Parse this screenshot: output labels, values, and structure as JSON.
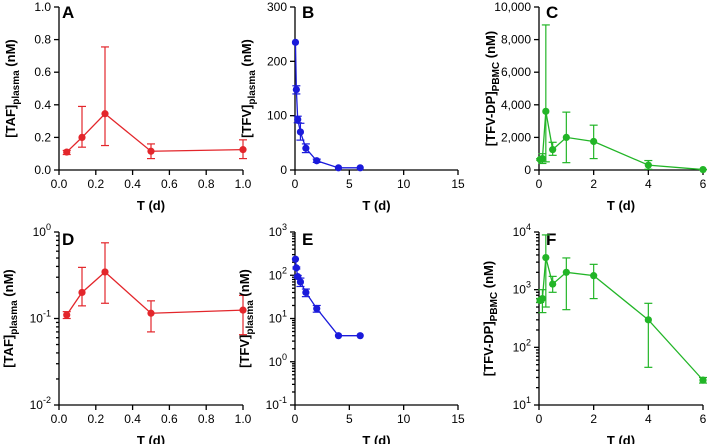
{
  "chart_data": [
    {
      "panel": "A",
      "type": "line",
      "color": "#e3262b",
      "scale": "linear",
      "xlabel": "T (d)",
      "ylabel_main": "[TAF]",
      "ylabel_sub": "plasma",
      "ylabel_tail": " (nM)",
      "xlim": [
        0,
        1
      ],
      "ylim": [
        0,
        1
      ],
      "xticks": [
        0,
        0.2,
        0.4,
        0.6,
        0.8,
        1
      ],
      "xtick_labels": [
        "0.0",
        "0.2",
        "0.4",
        "0.6",
        "0.8",
        "1.0"
      ],
      "yticks": [
        0,
        0.2,
        0.4,
        0.6,
        0.8,
        1
      ],
      "ytick_labels": [
        "0.0",
        "0.2",
        "0.4",
        "0.6",
        "0.8",
        "1.0"
      ],
      "x": [
        0.042,
        0.125,
        0.25,
        0.5,
        1.0
      ],
      "y": [
        0.11,
        0.2,
        0.345,
        0.115,
        0.125
      ],
      "err_low": [
        0.095,
        0.14,
        0.15,
        0.07,
        0.07
      ],
      "err_high": [
        0.12,
        0.39,
        0.755,
        0.16,
        0.185
      ]
    },
    {
      "panel": "B",
      "type": "line",
      "color": "#1a1adb",
      "scale": "linear",
      "xlabel": "T (d)",
      "ylabel_main": "[TFV]",
      "ylabel_sub": "plasma",
      "ylabel_tail": " (nM)",
      "xlim": [
        0,
        15
      ],
      "ylim": [
        0,
        300
      ],
      "xticks": [
        0,
        5,
        10,
        15
      ],
      "xtick_labels": [
        "0",
        "5",
        "10",
        "15"
      ],
      "yticks": [
        0,
        100,
        200,
        300
      ],
      "ytick_labels": [
        "0",
        "100",
        "200",
        "300"
      ],
      "x": [
        0.042,
        0.125,
        0.25,
        0.5,
        1,
        2,
        4,
        6
      ],
      "y": [
        235,
        148,
        93,
        70,
        40,
        17,
        4,
        4
      ],
      "err_low": [
        235,
        140,
        87,
        55,
        32,
        14,
        4,
        4
      ],
      "err_high": [
        235,
        155,
        99,
        86,
        48,
        20,
        4,
        4
      ]
    },
    {
      "panel": "C",
      "type": "line",
      "color": "#22b527",
      "scale": "linear",
      "xlabel": "T (d)",
      "ylabel_main": "[TFV-DP]",
      "ylabel_sub": "PBMC",
      "ylabel_tail": " (nM)",
      "xlim": [
        0,
        6
      ],
      "ylim": [
        0,
        10000
      ],
      "xticks": [
        0,
        2,
        4,
        6
      ],
      "xtick_labels": [
        "0",
        "2",
        "4",
        "6"
      ],
      "yticks": [
        0,
        2000,
        4000,
        6000,
        8000,
        10000
      ],
      "ytick_labels": [
        "0",
        "2,000",
        "4,000",
        "6,000",
        "8,000",
        "10,000"
      ],
      "x": [
        0.042,
        0.125,
        0.25,
        0.5,
        1,
        2,
        4,
        6
      ],
      "y": [
        650,
        700,
        3600,
        1250,
        2000,
        1750,
        300,
        27
      ],
      "err_low": [
        600,
        400,
        500,
        900,
        450,
        700,
        45,
        24
      ],
      "err_high": [
        700,
        1000,
        8900,
        1700,
        3550,
        2750,
        580,
        30
      ]
    },
    {
      "panel": "D",
      "type": "line",
      "color": "#e3262b",
      "scale": "log",
      "xlabel": "T (d)",
      "ylabel_main": "[TAF]",
      "ylabel_sub": "plasma",
      "ylabel_tail": " (nM)",
      "xlim": [
        0,
        1
      ],
      "ylim": [
        0.01,
        1
      ],
      "xticks": [
        0,
        0.2,
        0.4,
        0.6,
        0.8,
        1
      ],
      "xtick_labels": [
        "0.0",
        "0.2",
        "0.4",
        "0.6",
        "0.8",
        "1.0"
      ],
      "yticks": [
        0.01,
        0.1,
        1
      ],
      "ytick_labels": [
        {
          "b": "10",
          "e": "-2"
        },
        {
          "b": "10",
          "e": "-1"
        },
        {
          "b": "10",
          "e": "0"
        }
      ],
      "x": [
        0.042,
        0.125,
        0.25,
        0.5,
        1.0
      ],
      "y": [
        0.11,
        0.2,
        0.345,
        0.115,
        0.125
      ],
      "err_low": [
        0.1,
        0.14,
        0.15,
        0.07,
        0.065
      ],
      "err_high": [
        0.12,
        0.39,
        0.75,
        0.16,
        0.185
      ]
    },
    {
      "panel": "E",
      "type": "line",
      "color": "#1a1adb",
      "scale": "log",
      "xlabel": "T (d)",
      "ylabel_main": "[TFV]",
      "ylabel_sub": "plasma",
      "ylabel_tail": " (nM)",
      "xlim": [
        0,
        15
      ],
      "ylim": [
        0.1,
        1000
      ],
      "xticks": [
        0,
        5,
        10,
        15
      ],
      "xtick_labels": [
        "0",
        "5",
        "10",
        "15"
      ],
      "yticks": [
        0.1,
        1,
        10,
        100,
        1000
      ],
      "ytick_labels": [
        {
          "b": "10",
          "e": "-1"
        },
        {
          "b": "10",
          "e": "0"
        },
        {
          "b": "10",
          "e": "1"
        },
        {
          "b": "10",
          "e": "2"
        },
        {
          "b": "10",
          "e": "3"
        }
      ],
      "x": [
        0.042,
        0.125,
        0.25,
        0.5,
        1,
        2,
        4,
        6
      ],
      "y": [
        235,
        148,
        93,
        70,
        40,
        17,
        4,
        4
      ],
      "err_low": [
        235,
        140,
        87,
        55,
        32,
        14,
        4,
        4
      ],
      "err_high": [
        235,
        155,
        99,
        86,
        48,
        20,
        4,
        4
      ]
    },
    {
      "panel": "F",
      "type": "line",
      "color": "#22b527",
      "scale": "log",
      "xlabel": "T (d)",
      "ylabel_main": "[TFV-DP]",
      "ylabel_sub": "PBMC",
      "ylabel_tail": " (nM)",
      "xlim": [
        0,
        6
      ],
      "ylim": [
        10,
        10000
      ],
      "xticks": [
        0,
        2,
        4,
        6
      ],
      "xtick_labels": [
        "0",
        "2",
        "4",
        "6"
      ],
      "yticks": [
        10,
        100,
        1000,
        10000
      ],
      "ytick_labels": [
        {
          "b": "10",
          "e": "1"
        },
        {
          "b": "10",
          "e": "2"
        },
        {
          "b": "10",
          "e": "3"
        },
        {
          "b": "10",
          "e": "4"
        }
      ],
      "x": [
        0.042,
        0.125,
        0.25,
        0.5,
        1,
        2,
        4,
        6
      ],
      "y": [
        650,
        700,
        3600,
        1250,
        2000,
        1750,
        300,
        27
      ],
      "err_low": [
        600,
        400,
        500,
        900,
        450,
        700,
        45,
        24
      ],
      "err_high": [
        700,
        1000,
        8900,
        1700,
        3550,
        2750,
        580,
        30
      ]
    }
  ]
}
